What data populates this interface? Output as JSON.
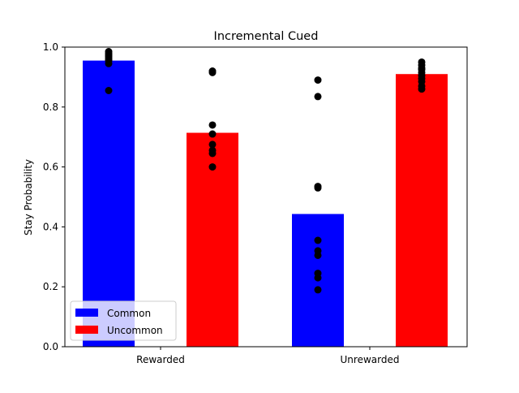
{
  "chart_data": {
    "type": "bar",
    "title": "Incremental Cued",
    "xlabel": "",
    "ylabel": "Stay Probability",
    "ylim": [
      0,
      1.0
    ],
    "yticks": [
      0.0,
      0.2,
      0.4,
      0.6,
      0.8,
      1.0
    ],
    "ytick_labels": [
      "0.0",
      "0.2",
      "0.4",
      "0.6",
      "0.8",
      "1.0"
    ],
    "categories": [
      "Rewarded",
      "Unrewarded"
    ],
    "grid": false,
    "legend_position": "lower-left",
    "series": [
      {
        "name": "Common",
        "color": "#0000ff",
        "values": [
          0.955,
          0.443
        ],
        "points": [
          [
            0.985,
            0.98,
            0.975,
            0.97,
            0.965,
            0.96,
            0.955,
            0.945,
            0.855
          ],
          [
            0.89,
            0.835,
            0.535,
            0.53,
            0.355,
            0.32,
            0.305,
            0.245,
            0.23,
            0.19
          ]
        ]
      },
      {
        "name": "Uncommon",
        "color": "#ff0000",
        "values": [
          0.714,
          0.91
        ],
        "points": [
          [
            0.92,
            0.915,
            0.74,
            0.71,
            0.675,
            0.655,
            0.645,
            0.6
          ],
          [
            0.95,
            0.94,
            0.93,
            0.925,
            0.915,
            0.905,
            0.895,
            0.885,
            0.87,
            0.86
          ]
        ]
      }
    ],
    "point_color": "#000000"
  }
}
